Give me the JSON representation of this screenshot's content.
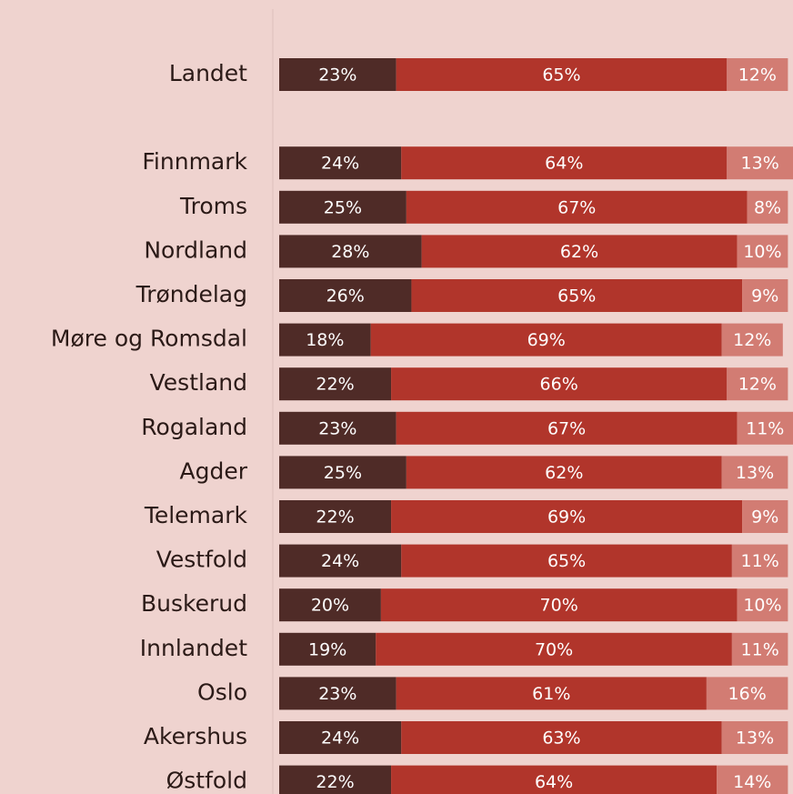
{
  "chart_data": {
    "type": "stacked-bar-horizontal",
    "categories": [
      "Landet",
      null,
      "Finnmark",
      "Troms",
      "Nordland",
      "Trøndelag",
      "Møre og Romsdal",
      "Vestland",
      "Rogaland",
      "Agder",
      "Telemark",
      "Vestfold",
      "Buskerud",
      "Innlandet",
      "Oslo",
      "Akershus",
      "Østfold"
    ],
    "series": [
      {
        "color": "#4f2b27",
        "values": [
          23,
          null,
          24,
          25,
          28,
          26,
          18,
          22,
          23,
          25,
          22,
          24,
          20,
          19,
          23,
          24,
          22
        ],
        "value_labels": [
          "23%",
          null,
          "24%",
          "25%",
          "28%",
          "26%",
          "18%",
          "22%",
          "23%",
          "25%",
          "22%",
          "24%",
          "20%",
          "19%",
          "23%",
          "24%",
          "22%"
        ]
      },
      {
        "color": "#b1352b",
        "values": [
          65,
          null,
          64,
          67,
          62,
          65,
          69,
          66,
          67,
          62,
          69,
          65,
          70,
          70,
          61,
          63,
          64
        ],
        "value_labels": [
          "65%",
          null,
          "64%",
          "67%",
          "62%",
          "65%",
          "69%",
          "66%",
          "67%",
          "62%",
          "69%",
          "65%",
          "70%",
          "70%",
          "61%",
          "63%",
          "64%"
        ]
      },
      {
        "color": "#d27c73",
        "values": [
          12,
          null,
          13,
          8,
          10,
          9,
          12,
          12,
          11,
          13,
          9,
          11,
          10,
          11,
          16,
          13,
          14
        ],
        "value_labels": [
          "12%",
          null,
          "13%",
          "8%",
          "10%",
          "9%",
          "12%",
          "12%",
          "11%",
          "13%",
          "9%",
          "11%",
          "10%",
          "11%",
          "16%",
          "13%",
          "14%"
        ]
      }
    ],
    "xlim": [
      0,
      101
    ]
  }
}
